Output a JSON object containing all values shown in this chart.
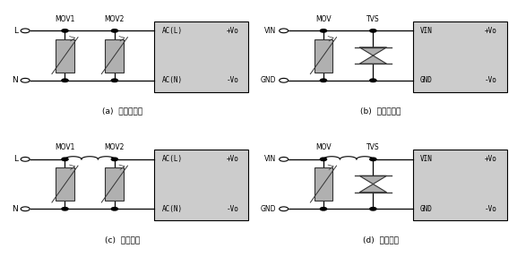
{
  "bg_color": "#ffffff",
  "box_color": "#cccccc",
  "line_color": "#000000",
  "labels": {
    "a_title": "(a)  不恰当应用",
    "b_title": "(b)  不恰当应用",
    "c_title": "(c)  推荐应用",
    "d_title": "(d)  推荐应用"
  },
  "figsize": [
    5.77,
    2.87
  ],
  "dpi": 100
}
